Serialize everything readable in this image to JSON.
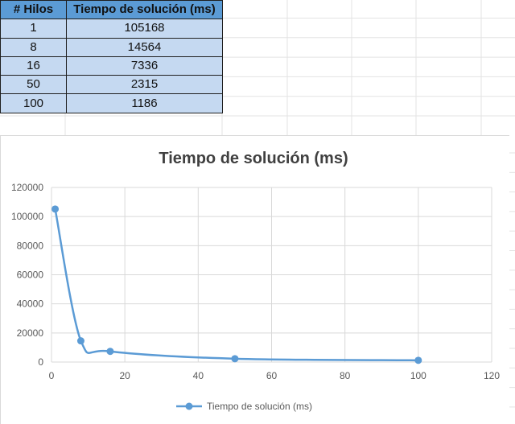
{
  "table": {
    "headers": [
      "# Hilos",
      "Tiempo de solución (ms)"
    ],
    "rows": [
      [
        "1",
        "105168"
      ],
      [
        "8",
        "14564"
      ],
      [
        "16",
        "7336"
      ],
      [
        "50",
        "2315"
      ],
      [
        "100",
        "1186"
      ]
    ]
  },
  "colors": {
    "header_fill": "#5b9bd5",
    "cell_fill": "#c5d9f1",
    "series": "#5b9bd5"
  },
  "chart_data": {
    "type": "scatter",
    "title": "Tiempo de solución (ms)",
    "xlabel": "",
    "ylabel": "",
    "smooth_line": true,
    "series": [
      {
        "name": "Tiempo de solución (ms)",
        "x": [
          1,
          8,
          16,
          50,
          100
        ],
        "y": [
          105168,
          14564,
          7336,
          2315,
          1186
        ]
      }
    ],
    "xlim": [
      0,
      120
    ],
    "ylim": [
      0,
      120000
    ],
    "x_ticks": [
      "0",
      "20",
      "40",
      "60",
      "80",
      "100",
      "120"
    ],
    "y_ticks": [
      "0",
      "20000",
      "40000",
      "60000",
      "80000",
      "100000",
      "120000"
    ],
    "grid": true,
    "legend_position": "bottom"
  }
}
